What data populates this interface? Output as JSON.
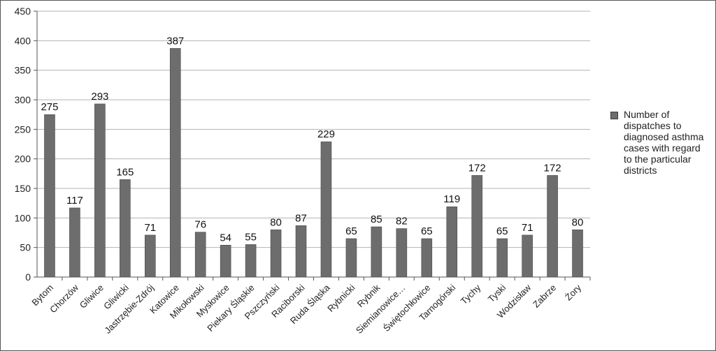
{
  "chart_data": {
    "type": "bar",
    "categories": [
      "Bytom",
      "Chorzów",
      "Gliwice",
      "Gliwicki",
      "Jastrzębie-Zdrój",
      "Katowice",
      "Mikołowski",
      "Mysłowice",
      "Piekary Śląskie",
      "Pszczyński",
      "Raciborski",
      "Ruda Śląska",
      "Rybnicki",
      "Rybnik",
      "Siemianowice…",
      "Świętochłowice",
      "Tarnogórski",
      "Tychy",
      "Tyski",
      "Wodzisław",
      "Zabrze",
      "Żory"
    ],
    "series": [
      {
        "name": "Number of dispatches to diagnosed asthma cases with regard to the particular districts",
        "values": [
          275,
          117,
          293,
          165,
          71,
          387,
          76,
          54,
          55,
          80,
          87,
          229,
          65,
          85,
          82,
          65,
          119,
          172,
          65,
          71,
          172,
          80
        ]
      }
    ],
    "ylim": [
      0,
      450
    ],
    "yticks": [
      0,
      50,
      100,
      150,
      200,
      250,
      300,
      350,
      400,
      450
    ],
    "grid": true,
    "legend_position": "right",
    "bar_color": "#6d6d6d",
    "grid_color": "#b3b3b3"
  }
}
